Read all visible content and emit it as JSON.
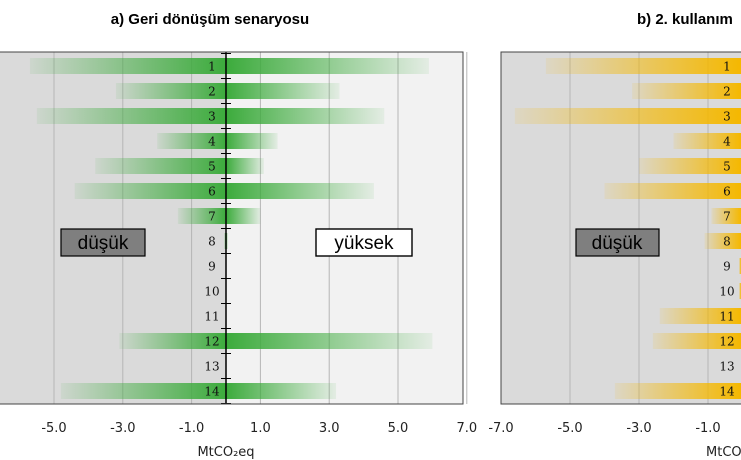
{
  "chart_data": [
    {
      "type": "bar",
      "title": "a) Geri dönüşüm senaryosu",
      "xlabel": "MtCO₂eq",
      "xlim": [
        -7.0,
        7.0
      ],
      "ticks": [
        "-5.0",
        "-3.0",
        "-1.0",
        "1.0",
        "3.0",
        "5.0",
        "7.0"
      ],
      "categories": [
        "1",
        "2",
        "3",
        "4",
        "5",
        "6",
        "7",
        "8",
        "9",
        "10",
        "11",
        "12",
        "13",
        "14"
      ],
      "low_values": [
        -5.7,
        -3.2,
        -5.5,
        -2.0,
        -3.8,
        -4.4,
        -1.4,
        -0.05,
        0,
        0,
        0,
        -3.1,
        0,
        -4.8
      ],
      "high_values": [
        5.9,
        3.3,
        4.6,
        1.5,
        1.1,
        4.3,
        1.0,
        0.05,
        0,
        0,
        0,
        6.0,
        0,
        3.2
      ],
      "low_label": "düşük",
      "high_label": "yüksek",
      "bar_color": "#3cab3c",
      "background_left": "#dadada",
      "background_right": "#f2f2f2",
      "grid": true
    },
    {
      "type": "bar",
      "title": "b) 2. kullanım",
      "xlabel": "MtCO",
      "xlim": [
        -7.0,
        0.2
      ],
      "ticks": [
        "-7.0",
        "-5.0",
        "-3.0",
        "-1.0"
      ],
      "categories": [
        "1",
        "2",
        "3",
        "4",
        "5",
        "6",
        "7",
        "8",
        "9",
        "10",
        "11",
        "12",
        "13",
        "14"
      ],
      "low_values": [
        -5.7,
        -3.2,
        -6.6,
        -2.0,
        -3.0,
        -4.0,
        -0.9,
        -1.1,
        -0.1,
        -0.1,
        -2.4,
        -2.6,
        0,
        -3.7
      ],
      "low_label": "düşük",
      "bar_color": "#f5b800",
      "background_left": "#dadada",
      "grid": true
    }
  ]
}
